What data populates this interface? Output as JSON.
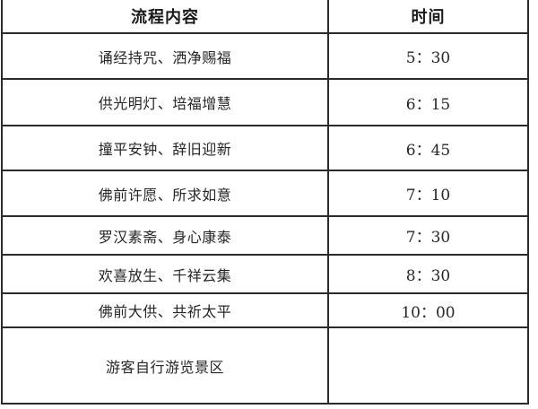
{
  "table": {
    "headers": {
      "process": "流程内容",
      "time": "时间"
    },
    "rows": [
      {
        "process": "诵经持咒、洒净赐福",
        "time": "5：30"
      },
      {
        "process": "供光明灯、培福增慧",
        "time": "6：15"
      },
      {
        "process": "撞平安钟、辞旧迎新",
        "time": "6：45"
      },
      {
        "process": "佛前许愿、所求如意",
        "time": "7：10"
      },
      {
        "process": "罗汉素斋、身心康泰",
        "time": "7：30"
      },
      {
        "process": "欢喜放生、千祥云集",
        "time": "8：30"
      },
      {
        "process": "佛前大供、共祈太平",
        "time": "10：00"
      },
      {
        "process": "游客自行游览景区",
        "time": ""
      }
    ],
    "colors": {
      "border": "#2b2b2b",
      "text": "#262626",
      "header_text": "#1a1a1a",
      "background": "#ffffff"
    }
  }
}
